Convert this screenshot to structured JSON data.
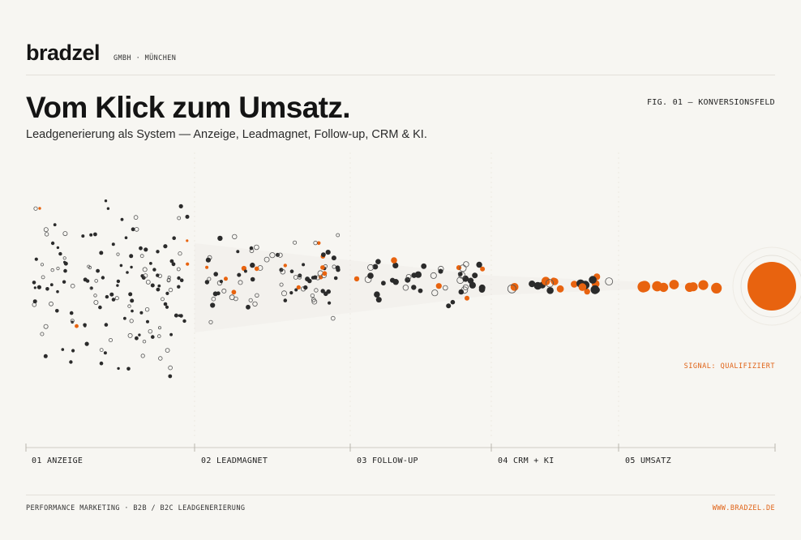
{
  "header": {
    "brand": "bradzel",
    "brand_sub": "GMBH · MÜNCHEN",
    "figure_label": "FIG. 01 — KONVERSIONSFELD"
  },
  "hero": {
    "title": "Vom Klick zum Umsatz.",
    "subtitle": "Leadgenerierung als System — Anzeige, Leadmagnet, Follow-up, CRM & KI."
  },
  "signal_label": "SIGNAL: QUALIFIZIERT",
  "stages": [
    {
      "label": "01 ANZEIGE"
    },
    {
      "label": "02 LEADMAGNET"
    },
    {
      "label": "03 FOLLOW-UP"
    },
    {
      "label": "04 CRM + KI"
    },
    {
      "label": "05 UMSATZ"
    }
  ],
  "footer": {
    "left": "PERFORMANCE MARKETING · B2B / B2C LEADGENERIERUNG",
    "right": "WWW.BRADZEL.DE"
  },
  "colors": {
    "background": "#f7f6f2",
    "ink": "#2b2b2b",
    "accent": "#e8630f",
    "rule": "#e3e1da"
  }
}
